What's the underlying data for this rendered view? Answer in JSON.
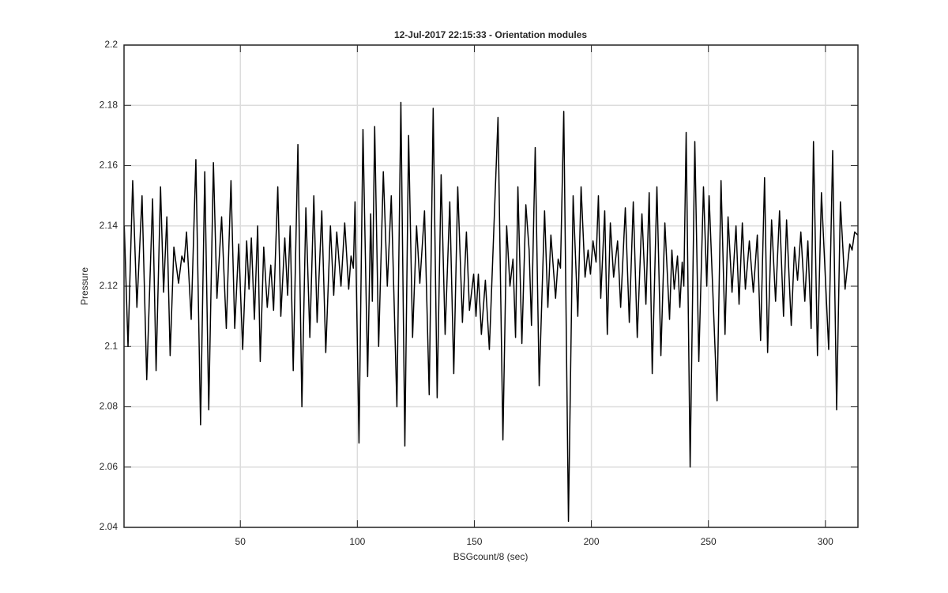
{
  "chart_data": {
    "type": "line",
    "title": "12-Jul-2017 22:15:33 - Orientation modules",
    "xlabel": "BSGcount/8 (sec)",
    "ylabel": "Pressure",
    "xlim": [
      0.3,
      313.9
    ],
    "ylim": [
      2.04,
      2.2
    ],
    "xticks": [
      50,
      100,
      150,
      200,
      250,
      300
    ],
    "yticks": [
      2.04,
      2.06,
      2.08,
      2.1,
      2.12,
      2.14,
      2.16,
      2.18,
      2.2
    ],
    "grid": true,
    "series": [
      {
        "color": "#000000",
        "x": [
          0.4,
          2.0,
          4.0,
          5.8,
          8.0,
          10.0,
          12.5,
          14.0,
          15.9,
          17.2,
          18.6,
          20.0,
          21.6,
          23.6,
          25.0,
          26.0,
          27.0,
          29.0,
          31.0,
          33.0,
          34.8,
          36.5,
          38.5,
          40.0,
          42.0,
          44.0,
          46.0,
          47.6,
          49.3,
          51.0,
          52.7,
          53.7,
          54.7,
          56.0,
          57.4,
          58.5,
          60.0,
          61.5,
          63.0,
          64.2,
          66.0,
          67.3,
          69.0,
          70.2,
          71.3,
          72.6,
          74.6,
          76.3,
          78.0,
          79.7,
          81.4,
          82.8,
          84.8,
          86.5,
          88.5,
          89.9,
          91.2,
          93.0,
          94.6,
          96.3,
          97.3,
          98.3,
          99.0,
          100.7,
          102.4,
          104.4,
          105.7,
          106.4,
          107.4,
          109.1,
          111.1,
          112.8,
          114.5,
          116.9,
          118.6,
          120.3,
          121.9,
          123.6,
          125.3,
          126.7,
          128.7,
          130.7,
          132.4,
          134.1,
          135.8,
          137.5,
          139.5,
          141.2,
          142.9,
          144.9,
          146.6,
          147.9,
          149.7,
          150.7,
          151.7,
          153.0,
          154.7,
          156.4,
          160.1,
          162.2,
          163.8,
          165.2,
          166.5,
          167.6,
          168.6,
          170.3,
          172.0,
          173.4,
          174.4,
          176.0,
          177.7,
          180.0,
          181.4,
          182.7,
          184.7,
          185.8,
          186.8,
          188.2,
          190.2,
          192.2,
          194.2,
          195.6,
          197.3,
          198.6,
          199.6,
          200.7,
          202.0,
          203.0,
          204.0,
          205.7,
          206.8,
          208.1,
          209.5,
          211.2,
          212.5,
          214.5,
          216.2,
          217.9,
          219.6,
          221.6,
          223.3,
          224.7,
          226.0,
          228.0,
          229.7,
          231.4,
          233.4,
          234.4,
          235.4,
          236.8,
          237.8,
          238.8,
          239.5,
          240.5,
          242.2,
          244.2,
          245.9,
          247.9,
          249.3,
          250.3,
          253.7,
          255.4,
          257.1,
          258.4,
          260.1,
          261.8,
          263.1,
          264.5,
          265.8,
          267.5,
          269.2,
          270.9,
          272.3,
          274.0,
          275.3,
          277.0,
          278.7,
          280.4,
          282.1,
          283.4,
          285.4,
          286.8,
          288.1,
          289.5,
          291.2,
          292.5,
          293.9,
          294.9,
          296.6,
          298.3,
          301.4,
          303.1,
          304.8,
          306.4,
          308.4,
          310.4,
          311.4,
          312.5,
          313.8
        ],
        "values": [
          2.14,
          2.1,
          2.155,
          2.113,
          2.15,
          2.089,
          2.149,
          2.092,
          2.153,
          2.118,
          2.143,
          2.097,
          2.133,
          2.121,
          2.13,
          2.128,
          2.138,
          2.109,
          2.162,
          2.074,
          2.158,
          2.079,
          2.161,
          2.116,
          2.143,
          2.106,
          2.155,
          2.106,
          2.134,
          2.099,
          2.135,
          2.119,
          2.136,
          2.109,
          2.14,
          2.095,
          2.133,
          2.113,
          2.127,
          2.112,
          2.153,
          2.11,
          2.136,
          2.117,
          2.14,
          2.092,
          2.167,
          2.08,
          2.146,
          2.103,
          2.15,
          2.108,
          2.145,
          2.098,
          2.14,
          2.117,
          2.138,
          2.12,
          2.141,
          2.119,
          2.13,
          2.126,
          2.148,
          2.068,
          2.172,
          2.09,
          2.144,
          2.115,
          2.173,
          2.1,
          2.158,
          2.12,
          2.15,
          2.08,
          2.181,
          2.067,
          2.17,
          2.103,
          2.14,
          2.121,
          2.145,
          2.084,
          2.179,
          2.083,
          2.157,
          2.104,
          2.148,
          2.091,
          2.153,
          2.108,
          2.138,
          2.112,
          2.124,
          2.11,
          2.124,
          2.104,
          2.122,
          2.099,
          2.176,
          2.069,
          2.14,
          2.12,
          2.129,
          2.103,
          2.153,
          2.101,
          2.147,
          2.132,
          2.107,
          2.166,
          2.087,
          2.145,
          2.113,
          2.137,
          2.116,
          2.129,
          2.126,
          2.178,
          2.042,
          2.15,
          2.11,
          2.153,
          2.123,
          2.132,
          2.124,
          2.135,
          2.128,
          2.15,
          2.116,
          2.145,
          2.104,
          2.141,
          2.123,
          2.135,
          2.113,
          2.146,
          2.108,
          2.148,
          2.103,
          2.144,
          2.114,
          2.151,
          2.091,
          2.153,
          2.097,
          2.141,
          2.109,
          2.132,
          2.119,
          2.13,
          2.113,
          2.128,
          2.12,
          2.171,
          2.06,
          2.168,
          2.095,
          2.153,
          2.12,
          2.15,
          2.082,
          2.155,
          2.104,
          2.143,
          2.118,
          2.14,
          2.114,
          2.141,
          2.119,
          2.135,
          2.118,
          2.137,
          2.102,
          2.156,
          2.098,
          2.142,
          2.115,
          2.145,
          2.11,
          2.142,
          2.107,
          2.133,
          2.122,
          2.138,
          2.115,
          2.135,
          2.106,
          2.168,
          2.097,
          2.151,
          2.099,
          2.165,
          2.079,
          2.148,
          2.119,
          2.134,
          2.132,
          2.138,
          2.137
        ]
      }
    ]
  }
}
